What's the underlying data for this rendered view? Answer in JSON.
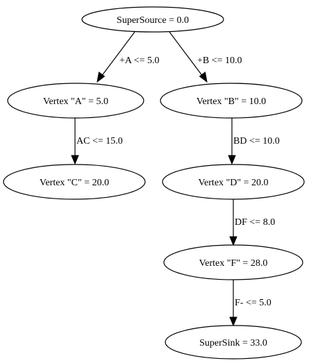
{
  "graph": {
    "nodes": {
      "super_source": "SuperSource = 0.0",
      "vertex_a": "Vertex \"A\" = 5.0",
      "vertex_b": "Vertex \"B\" = 10.0",
      "vertex_c": "Vertex \"C\" = 20.0",
      "vertex_d": "Vertex \"D\" = 20.0",
      "vertex_f": "Vertex \"F\" = 28.0",
      "super_sink": "SuperSink = 33.0"
    },
    "edges": {
      "source_to_a": "+A <= 5.0",
      "source_to_b": "+B <= 10.0",
      "a_to_c": "AC <= 15.0",
      "b_to_d": "BD <= 10.0",
      "d_to_f": "DF <= 8.0",
      "f_to_sink": "F- <= 5.0"
    }
  }
}
